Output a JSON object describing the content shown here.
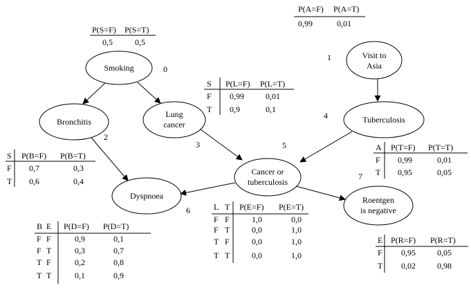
{
  "nodes": {
    "smoking": {
      "label": "Smoking",
      "num": "0"
    },
    "asia": {
      "label": "Visit to\nAsia",
      "num": "1"
    },
    "bronchitis": {
      "label": "Bronchitis",
      "num": "2"
    },
    "lung": {
      "label": "Lung\ncancer",
      "num": "3"
    },
    "tub": {
      "label": "Tuberculosis",
      "num": "4"
    },
    "either": {
      "label": "Cancer or\ntuberculosis",
      "num": "5"
    },
    "dysp": {
      "label": "Dyspnoea",
      "num": "6"
    },
    "xray": {
      "label": "Roentgen\nis negative",
      "num": "7"
    }
  },
  "tables": {
    "asia": {
      "h": [
        "P(A=F)",
        "P(A=T)"
      ],
      "r": [
        [
          "0,99",
          "0,01"
        ]
      ]
    },
    "smoking": {
      "h": [
        "P(S=F)",
        "P(S=T)"
      ],
      "r": [
        [
          "0,5",
          "0,5"
        ]
      ]
    },
    "lung": {
      "p": [
        "S"
      ],
      "h": [
        "P(L=F)",
        "P(L=T)"
      ],
      "r": [
        [
          "F",
          "0,99",
          "0,01"
        ],
        [
          "T",
          "0,9",
          "0,1"
        ]
      ]
    },
    "bronchitis": {
      "p": [
        "S"
      ],
      "h": [
        "P(B=F)",
        "P(B=T)"
      ],
      "r": [
        [
          "F",
          "0,7",
          "0,3"
        ],
        [
          "T",
          "0,6",
          "0,4"
        ]
      ]
    },
    "tub": {
      "p": [
        "A"
      ],
      "h": [
        "P(T=F)",
        "P(T=T)"
      ],
      "r": [
        [
          "F",
          "0,99",
          "0,01"
        ],
        [
          "T",
          "0,95",
          "0,05"
        ]
      ]
    },
    "either": {
      "p": [
        "L",
        "T"
      ],
      "h": [
        "P(E=F)",
        "P(E=T)"
      ],
      "r": [
        [
          "F",
          "F",
          "1,0",
          "0,0"
        ],
        [
          "F",
          "T",
          "0,0",
          "1,0"
        ],
        [
          "T",
          "F",
          "0,0",
          "1,0"
        ],
        [
          "T",
          "T",
          "0,0",
          "1,0"
        ]
      ]
    },
    "dysp": {
      "p": [
        "B",
        "E"
      ],
      "h": [
        "P(D=F)",
        "P(D=T)"
      ],
      "r": [
        [
          "F",
          "F",
          "0,9",
          "0,1"
        ],
        [
          "F",
          "T",
          "0,3",
          "0,7"
        ],
        [
          "T",
          "F",
          "0,2",
          "0,8"
        ],
        [
          "T",
          "T",
          "0,1",
          "0,9"
        ]
      ]
    },
    "xray": {
      "p": [
        "E"
      ],
      "h": [
        "P(R=F)",
        "P(R=T)"
      ],
      "r": [
        [
          "F",
          "0,95",
          "0,05"
        ],
        [
          "T",
          "0,02",
          "0,98"
        ]
      ]
    }
  }
}
